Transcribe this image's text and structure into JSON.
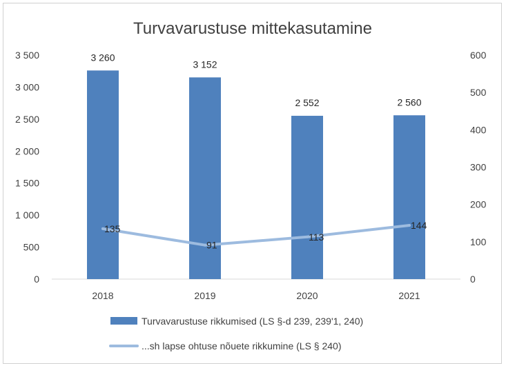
{
  "chart_data": {
    "type": "bar",
    "title": "Turvavarustuse mittekasutamine",
    "categories": [
      "2018",
      "2019",
      "2020",
      "2021"
    ],
    "series": [
      {
        "name": "Turvavarustuse rikkumised (LS §-d 239, 239'1, 240)",
        "type": "bar",
        "axis": "left",
        "values": [
          3260,
          3152,
          2552,
          2560
        ],
        "labels": [
          "3 260",
          "3 152",
          "2 552",
          "2 560"
        ],
        "color": "#4f81bd"
      },
      {
        "name": "...sh lapse ohtuse nõuete rikkumine (LS § 240)",
        "type": "line",
        "axis": "right",
        "values": [
          135,
          91,
          113,
          144
        ],
        "labels": [
          "135",
          "91",
          "113",
          "144"
        ],
        "color": "#9dbbdf"
      }
    ],
    "y_left": {
      "min": 0,
      "max": 3500,
      "ticks": [
        0,
        500,
        1000,
        1500,
        2000,
        2500,
        3000,
        3500
      ],
      "tick_labels": [
        "0",
        "500",
        "1 000",
        "1 500",
        "2 000",
        "2 500",
        "3 000",
        "3 500"
      ]
    },
    "y_right": {
      "min": 0,
      "max": 600,
      "ticks": [
        0,
        100,
        200,
        300,
        400,
        500,
        600
      ],
      "tick_labels": [
        "0",
        "100",
        "200",
        "300",
        "400",
        "500",
        "600"
      ]
    },
    "grid": false,
    "legend_position": "bottom"
  }
}
